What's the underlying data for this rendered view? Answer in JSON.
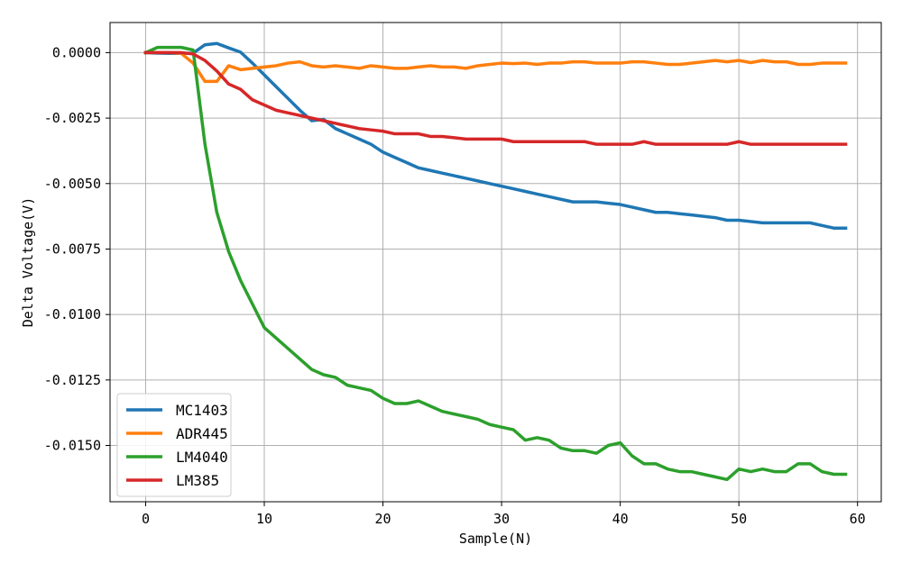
{
  "chart_data": {
    "type": "line",
    "title": "",
    "xlabel": "Sample(N)",
    "ylabel": "Delta Voltage(V)",
    "xlim": [
      -3,
      62
    ],
    "ylim": [
      -0.01715,
      0.00115
    ],
    "xticks": [
      0,
      10,
      20,
      30,
      40,
      50,
      60
    ],
    "xtick_labels": [
      "0",
      "10",
      "20",
      "30",
      "40",
      "50",
      "60"
    ],
    "yticks": [
      0.0,
      -0.0025,
      -0.005,
      -0.0075,
      -0.01,
      -0.0125,
      -0.015
    ],
    "ytick_labels": [
      "0.0000",
      "-0.0025",
      "-0.0050",
      "-0.0075",
      "-0.0100",
      "-0.0125",
      "-0.0150"
    ],
    "grid": true,
    "legend_location": "lower-left",
    "x": [
      0,
      1,
      2,
      3,
      4,
      5,
      6,
      7,
      8,
      9,
      10,
      11,
      12,
      13,
      14,
      15,
      16,
      17,
      18,
      19,
      20,
      21,
      22,
      23,
      24,
      25,
      26,
      27,
      28,
      29,
      30,
      31,
      32,
      33,
      34,
      35,
      36,
      37,
      38,
      39,
      40,
      41,
      42,
      43,
      44,
      45,
      46,
      47,
      48,
      49,
      50,
      51,
      52,
      53,
      54,
      55,
      56,
      57,
      58,
      59
    ],
    "series": [
      {
        "name": "MC1403",
        "color": "#1f77b4",
        "values": [
          0.0,
          -2e-05,
          -3e-05,
          -3e-05,
          -2e-05,
          0.0003,
          0.00035,
          0.00018,
          2e-05,
          -0.0004,
          -0.00085,
          -0.0013,
          -0.00175,
          -0.0022,
          -0.0026,
          -0.00255,
          -0.0029,
          -0.0031,
          -0.0033,
          -0.0035,
          -0.0038,
          -0.004,
          -0.0042,
          -0.0044,
          -0.0045,
          -0.0046,
          -0.0047,
          -0.0048,
          -0.0049,
          -0.005,
          -0.0051,
          -0.0052,
          -0.0053,
          -0.0054,
          -0.0055,
          -0.0056,
          -0.0057,
          -0.0057,
          -0.0057,
          -0.00575,
          -0.0058,
          -0.0059,
          -0.006,
          -0.0061,
          -0.0061,
          -0.00615,
          -0.0062,
          -0.00625,
          -0.0063,
          -0.0064,
          -0.0064,
          -0.00645,
          -0.0065,
          -0.0065,
          -0.0065,
          -0.0065,
          -0.0065,
          -0.0066,
          -0.0067,
          -0.0067
        ]
      },
      {
        "name": "ADR445",
        "color": "#ff7f0e",
        "values": [
          0.0,
          0.0,
          0.0,
          -3e-05,
          -0.0004,
          -0.0011,
          -0.0011,
          -0.0005,
          -0.00065,
          -0.0006,
          -0.00055,
          -0.0005,
          -0.0004,
          -0.00035,
          -0.0005,
          -0.00055,
          -0.0005,
          -0.00055,
          -0.0006,
          -0.0005,
          -0.00055,
          -0.0006,
          -0.0006,
          -0.00055,
          -0.0005,
          -0.00055,
          -0.00055,
          -0.0006,
          -0.0005,
          -0.00045,
          -0.0004,
          -0.00042,
          -0.0004,
          -0.00045,
          -0.0004,
          -0.0004,
          -0.00035,
          -0.00035,
          -0.0004,
          -0.0004,
          -0.0004,
          -0.00035,
          -0.00035,
          -0.0004,
          -0.00045,
          -0.00045,
          -0.0004,
          -0.00035,
          -0.0003,
          -0.00035,
          -0.0003,
          -0.00038,
          -0.0003,
          -0.00035,
          -0.00035,
          -0.00045,
          -0.00045,
          -0.0004,
          -0.0004,
          -0.0004
        ]
      },
      {
        "name": "LM4040",
        "color": "#2ca02c",
        "values": [
          0.0,
          0.0002,
          0.0002,
          0.0002,
          0.0001,
          -0.0035,
          -0.0061,
          -0.0076,
          -0.0087,
          -0.0096,
          -0.0105,
          -0.0109,
          -0.0113,
          -0.0117,
          -0.0121,
          -0.0123,
          -0.0124,
          -0.0127,
          -0.0128,
          -0.0129,
          -0.0132,
          -0.0134,
          -0.0134,
          -0.0133,
          -0.0135,
          -0.0137,
          -0.0138,
          -0.0139,
          -0.014,
          -0.0142,
          -0.0143,
          -0.0144,
          -0.0148,
          -0.0147,
          -0.0148,
          -0.0151,
          -0.0152,
          -0.0152,
          -0.0153,
          -0.015,
          -0.0149,
          -0.0154,
          -0.0157,
          -0.0157,
          -0.0159,
          -0.016,
          -0.016,
          -0.0161,
          -0.0162,
          -0.0163,
          -0.0159,
          -0.016,
          -0.0159,
          -0.016,
          -0.016,
          -0.0157,
          -0.0157,
          -0.016,
          -0.0161,
          -0.0161
        ]
      },
      {
        "name": "LM385",
        "color": "#d62728",
        "values": [
          0.0,
          0.0,
          0.0,
          0.0,
          -5e-05,
          -0.0003,
          -0.0007,
          -0.0012,
          -0.0014,
          -0.0018,
          -0.002,
          -0.0022,
          -0.0023,
          -0.0024,
          -0.0025,
          -0.0026,
          -0.0027,
          -0.0028,
          -0.0029,
          -0.00295,
          -0.003,
          -0.0031,
          -0.0031,
          -0.0031,
          -0.0032,
          -0.0032,
          -0.00325,
          -0.0033,
          -0.0033,
          -0.0033,
          -0.0033,
          -0.0034,
          -0.0034,
          -0.0034,
          -0.0034,
          -0.0034,
          -0.0034,
          -0.0034,
          -0.0035,
          -0.0035,
          -0.0035,
          -0.0035,
          -0.0034,
          -0.0035,
          -0.0035,
          -0.0035,
          -0.0035,
          -0.0035,
          -0.0035,
          -0.0035,
          -0.0034,
          -0.0035,
          -0.0035,
          -0.0035,
          -0.0035,
          -0.0035,
          -0.0035,
          -0.0035,
          -0.0035,
          -0.0035
        ]
      }
    ]
  }
}
